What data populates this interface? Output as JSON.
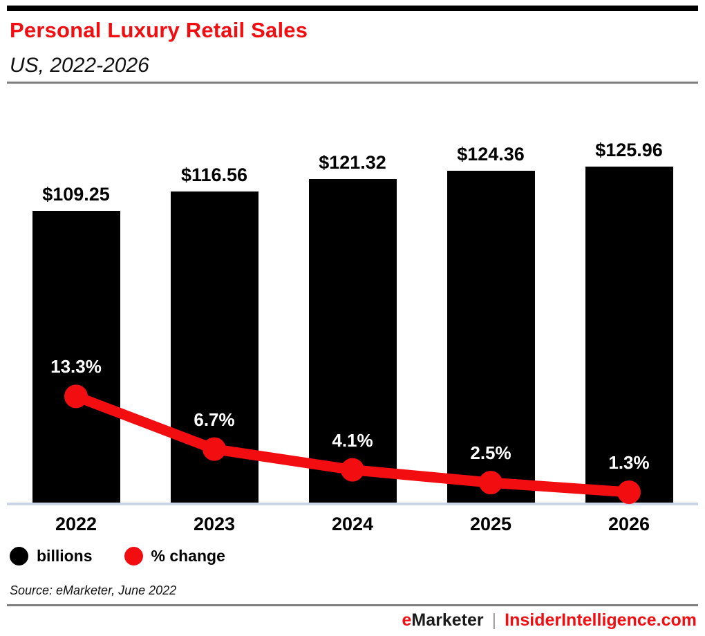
{
  "header": {
    "title": "Personal Luxury Retail Sales",
    "subtitle": "US, 2022-2026"
  },
  "legend": {
    "items": [
      {
        "label": "billions",
        "color": "#000000"
      },
      {
        "label": "% change",
        "color": "#f20d11"
      }
    ]
  },
  "source_note": "Source: eMarketer, June 2022",
  "brand_footer": {
    "brand_e": "e",
    "brand_rest": "Marketer",
    "divider": "|",
    "site": "InsiderIntelligence.com"
  },
  "colors": {
    "accent_red": "#f20d11",
    "bar_black": "#000000",
    "axis_line": "#ccd5e8",
    "rule_gray": "#7f7f7f",
    "top_bar": "#000000",
    "divider_gray": "#9b9b9b",
    "pct_label_white": "#ffffff"
  },
  "chart_data": {
    "type": "bar",
    "title": "Personal Luxury Retail Sales",
    "subtitle": "US, 2022-2026",
    "categories": [
      "2022",
      "2023",
      "2024",
      "2025",
      "2026"
    ],
    "series": [
      {
        "name": "billions",
        "kind": "bar",
        "values": [
          109.25,
          116.56,
          121.32,
          124.36,
          125.96
        ],
        "labels": [
          "$109.25",
          "$116.56",
          "$121.32",
          "$124.36",
          "$125.96"
        ],
        "value_prefix": "$",
        "unit": "billions",
        "color": "#000000"
      },
      {
        "name": "% change",
        "kind": "line",
        "values": [
          13.3,
          6.7,
          4.1,
          2.5,
          1.3
        ],
        "labels": [
          "13.3%",
          "6.7%",
          "4.1%",
          "2.5%",
          "1.3%"
        ],
        "unit": "% change",
        "color": "#f20d11"
      }
    ],
    "xlabel": "",
    "ylabel": "",
    "grid": false,
    "legend_position": "bottom-left",
    "bar_baseline_value": 0
  }
}
